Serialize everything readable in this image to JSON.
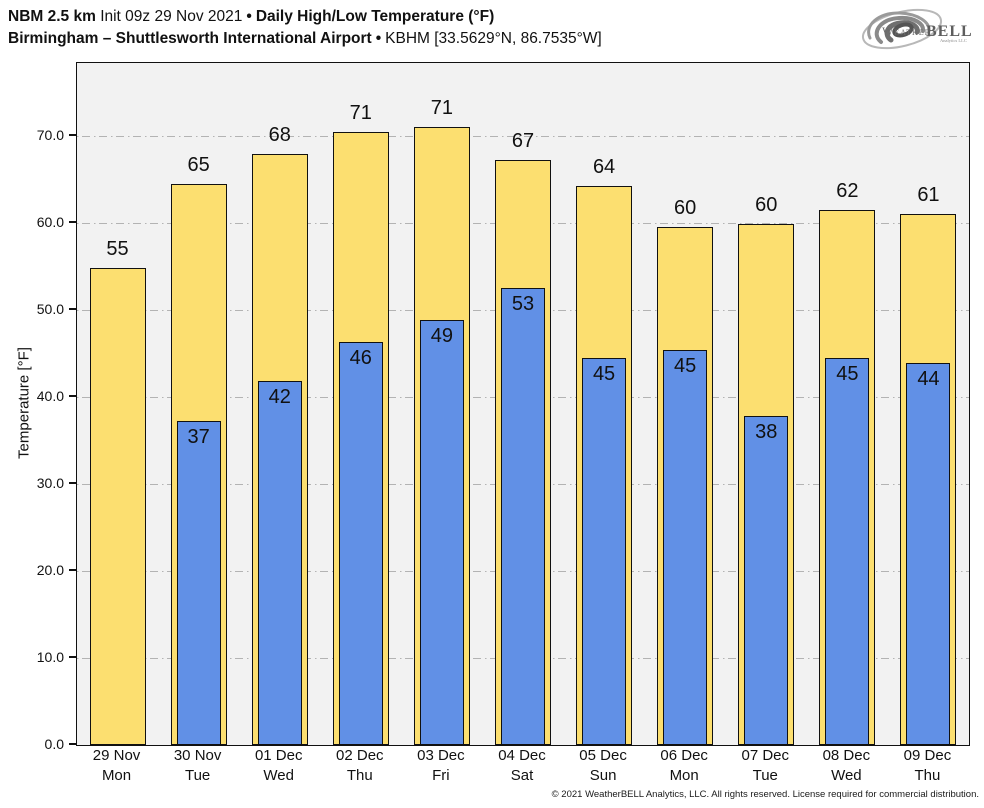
{
  "header": {
    "model": "NBM 2.5 km",
    "init": "Init 09z 29 Nov 2021",
    "bullet": "•",
    "product": "Daily High/Low Temperature (°F)",
    "location": "Birmingham – Shuttlesworth International Airport",
    "station": "KBHM [33.5629°N, 86.7535°W]"
  },
  "logo": {
    "weather": "Weather",
    "bell": "BELL",
    "sub": "Analytics LLC"
  },
  "footer": {
    "copyright": "© 2021 WeatherBELL Analytics, LLC. All rights reserved. License required for commercial distribution."
  },
  "chart_data": {
    "type": "bar",
    "title": "NBM 2.5 km Init 09z 29 Nov 2021 • Daily High/Low Temperature (°F) — Birmingham – Shuttlesworth International Airport • KBHM",
    "categories": [
      "29 Nov",
      "30 Nov",
      "01 Dec",
      "02 Dec",
      "03 Dec",
      "04 Dec",
      "05 Dec",
      "06 Dec",
      "07 Dec",
      "08 Dec",
      "09 Dec"
    ],
    "weekdays": [
      "Mon",
      "Tue",
      "Wed",
      "Thu",
      "Fri",
      "Sat",
      "Sun",
      "Mon",
      "Tue",
      "Wed",
      "Thu"
    ],
    "series": [
      {
        "name": "High",
        "color": "#FCDF70",
        "values": [
          55,
          65,
          68,
          71,
          71,
          67,
          64,
          60,
          60,
          62,
          61
        ],
        "precise": [
          54.8,
          64.5,
          67.9,
          70.5,
          71.1,
          67.2,
          64.3,
          59.5,
          59.9,
          61.5,
          61.0
        ]
      },
      {
        "name": "Low",
        "color": "#6190E6",
        "values": [
          null,
          37,
          42,
          46,
          49,
          53,
          45,
          45,
          38,
          45,
          44
        ],
        "precise": [
          null,
          37.2,
          41.9,
          46.3,
          48.9,
          52.5,
          44.5,
          45.4,
          37.8,
          44.5,
          43.9
        ]
      }
    ],
    "xlabel": "",
    "ylabel": "Temperature [°F]",
    "yticks": [
      {
        "label": "0.0",
        "value": 0
      },
      {
        "label": "10.0",
        "value": 10
      },
      {
        "label": "20.0",
        "value": 20
      },
      {
        "label": "30.0",
        "value": 30
      },
      {
        "label": "40.0",
        "value": 40
      },
      {
        "label": "50.0",
        "value": 50
      },
      {
        "label": "60.0",
        "value": 60
      },
      {
        "label": "70.0",
        "value": 70
      }
    ],
    "ylim": [
      0,
      78.4
    ],
    "grid": true,
    "grid_style": "dash-dot",
    "plot_background": "#f2f2f2",
    "bar_border": "#111111",
    "legend": "none"
  }
}
